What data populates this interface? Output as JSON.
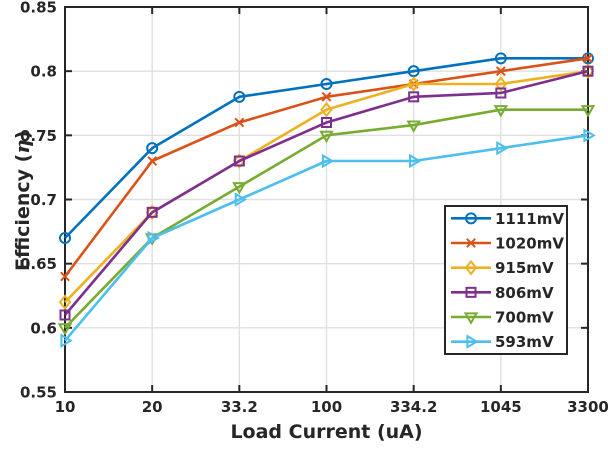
{
  "figure": {
    "background_color": "#ffffff",
    "axis_color": "#262626",
    "grid_color": "#e0e0e0",
    "legend_border_color": "#262626",
    "legend_background": "#ffffff"
  },
  "labels": {
    "xlabel": "Load Current (uA)",
    "ylabel_prefix": "Efficiency (",
    "ylabel_symbol": "η",
    "ylabel_suffix": ")"
  },
  "chart_data": {
    "type": "line",
    "title": "",
    "xlabel": "Load Current (uA)",
    "ylabel": "Efficiency (η)",
    "x_scale": "categorical-log-like",
    "categories": [
      10,
      20,
      33.2,
      100,
      334.2,
      1045,
      3300
    ],
    "x_tick_labels": [
      "10",
      "20",
      "33.2",
      "100",
      "334.2",
      "1045",
      "3300"
    ],
    "y_ticks": [
      0.55,
      0.6,
      0.65,
      0.7,
      0.75,
      0.8,
      0.85
    ],
    "y_tick_labels": [
      "0.55",
      "0.6",
      "0.65",
      "0.7",
      "0.75",
      "0.8",
      "0.85"
    ],
    "ylim": [
      0.55,
      0.85
    ],
    "grid": true,
    "legend_position": "inside-lower-right",
    "series": [
      {
        "name": "1111mV",
        "color": "#0072BD",
        "marker": "circle",
        "values": [
          0.67,
          0.74,
          0.78,
          0.79,
          0.8,
          0.81,
          0.81
        ]
      },
      {
        "name": "1020mV",
        "color": "#D95319",
        "marker": "x",
        "values": [
          0.64,
          0.73,
          0.76,
          0.78,
          0.79,
          0.8,
          0.81
        ]
      },
      {
        "name": "915mV",
        "color": "#EDB120",
        "marker": "diamond",
        "values": [
          0.62,
          0.69,
          0.73,
          0.77,
          0.79,
          0.79,
          0.8
        ]
      },
      {
        "name": "806mV",
        "color": "#7E2F8E",
        "marker": "square",
        "values": [
          0.61,
          0.69,
          0.73,
          0.76,
          0.78,
          0.783,
          0.8
        ]
      },
      {
        "name": "700mV",
        "color": "#77AC30",
        "marker": "triangle-down",
        "values": [
          0.6,
          0.67,
          0.71,
          0.75,
          0.758,
          0.77,
          0.77
        ]
      },
      {
        "name": "593mV",
        "color": "#4DBEEE",
        "marker": "triangle-right",
        "values": [
          0.59,
          0.67,
          0.7,
          0.73,
          0.73,
          0.74,
          0.75
        ]
      }
    ]
  }
}
